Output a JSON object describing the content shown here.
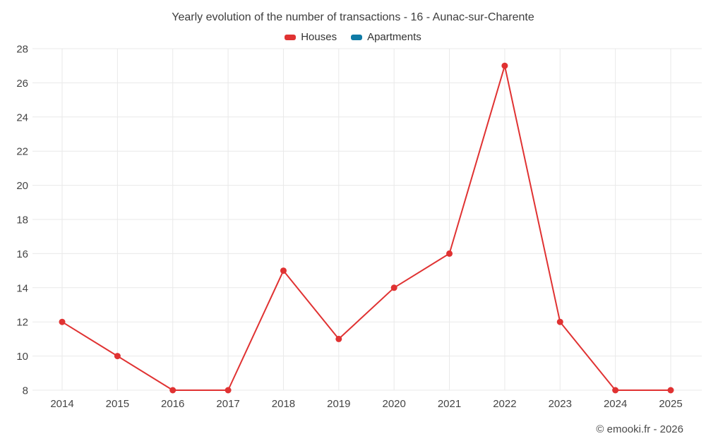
{
  "title": "Yearly evolution of the number of transactions - 16 - Aunac-sur-Charente",
  "footer": "© emooki.fr - 2026",
  "colors": {
    "houses": "#e03232",
    "apartments": "#0f7ba6",
    "grid": "#e9e9e9",
    "axis_text": "#444444"
  },
  "chart_data": {
    "type": "line",
    "title": "Yearly evolution of the number of transactions - 16 - Aunac-sur-Charente",
    "x": [
      2014,
      2015,
      2016,
      2017,
      2018,
      2019,
      2020,
      2021,
      2022,
      2023,
      2024,
      2025
    ],
    "series": [
      {
        "name": "Houses",
        "color": "#e03232",
        "values": [
          12,
          10,
          8,
          8,
          15,
          11,
          14,
          16,
          27,
          12,
          8,
          8
        ]
      },
      {
        "name": "Apartments",
        "color": "#0f7ba6",
        "values": []
      }
    ],
    "xlabel": "",
    "ylabel": "",
    "ylim": [
      8,
      28
    ],
    "ytick_step": 2,
    "grid": true,
    "legend_position": "top"
  }
}
